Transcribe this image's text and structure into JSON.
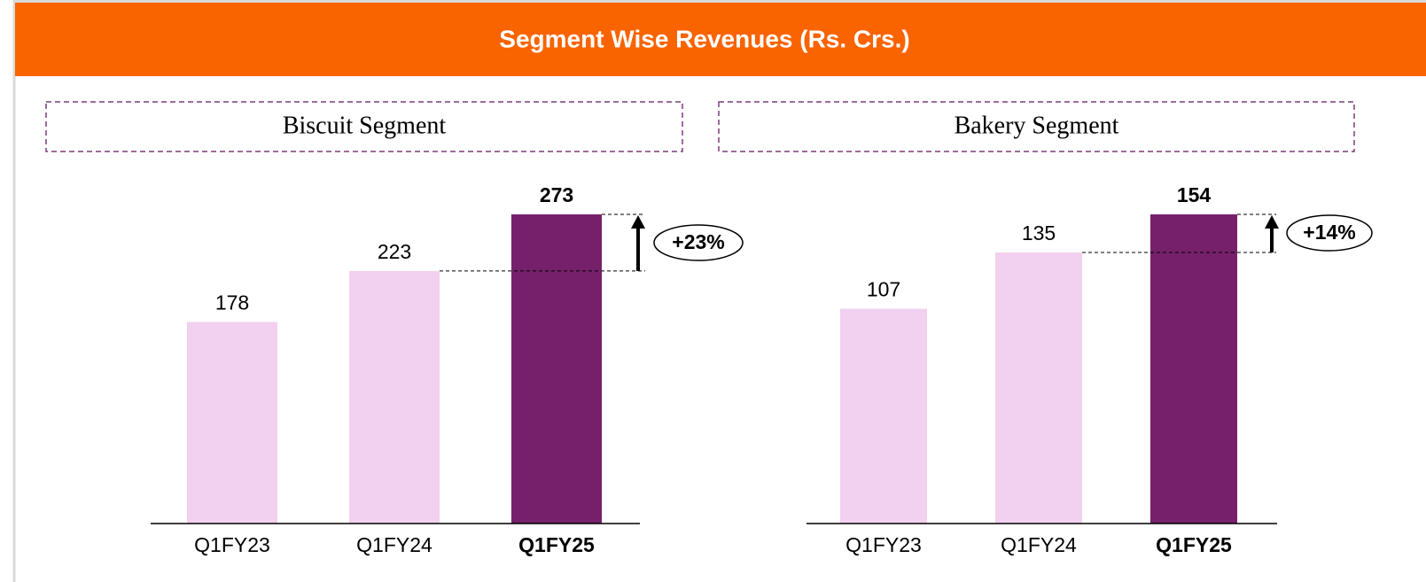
{
  "header": {
    "title": "Segment Wise Revenues (Rs. Crs.)"
  },
  "chart_data": [
    {
      "type": "bar",
      "title": "Biscuit Segment",
      "categories": [
        "Q1FY23",
        "Q1FY24",
        "Q1FY25"
      ],
      "values": [
        178,
        223,
        273
      ],
      "colors": [
        "#f2d0ef",
        "#f2d0ef",
        "#76206b"
      ],
      "annotation": "+23%"
    },
    {
      "type": "bar",
      "title": "Bakery Segment",
      "categories": [
        "Q1FY23",
        "Q1FY24",
        "Q1FY25"
      ],
      "values": [
        107,
        135,
        154
      ],
      "colors": [
        "#f2d0ef",
        "#f2d0ef",
        "#76206b"
      ],
      "annotation": "+14%"
    }
  ]
}
